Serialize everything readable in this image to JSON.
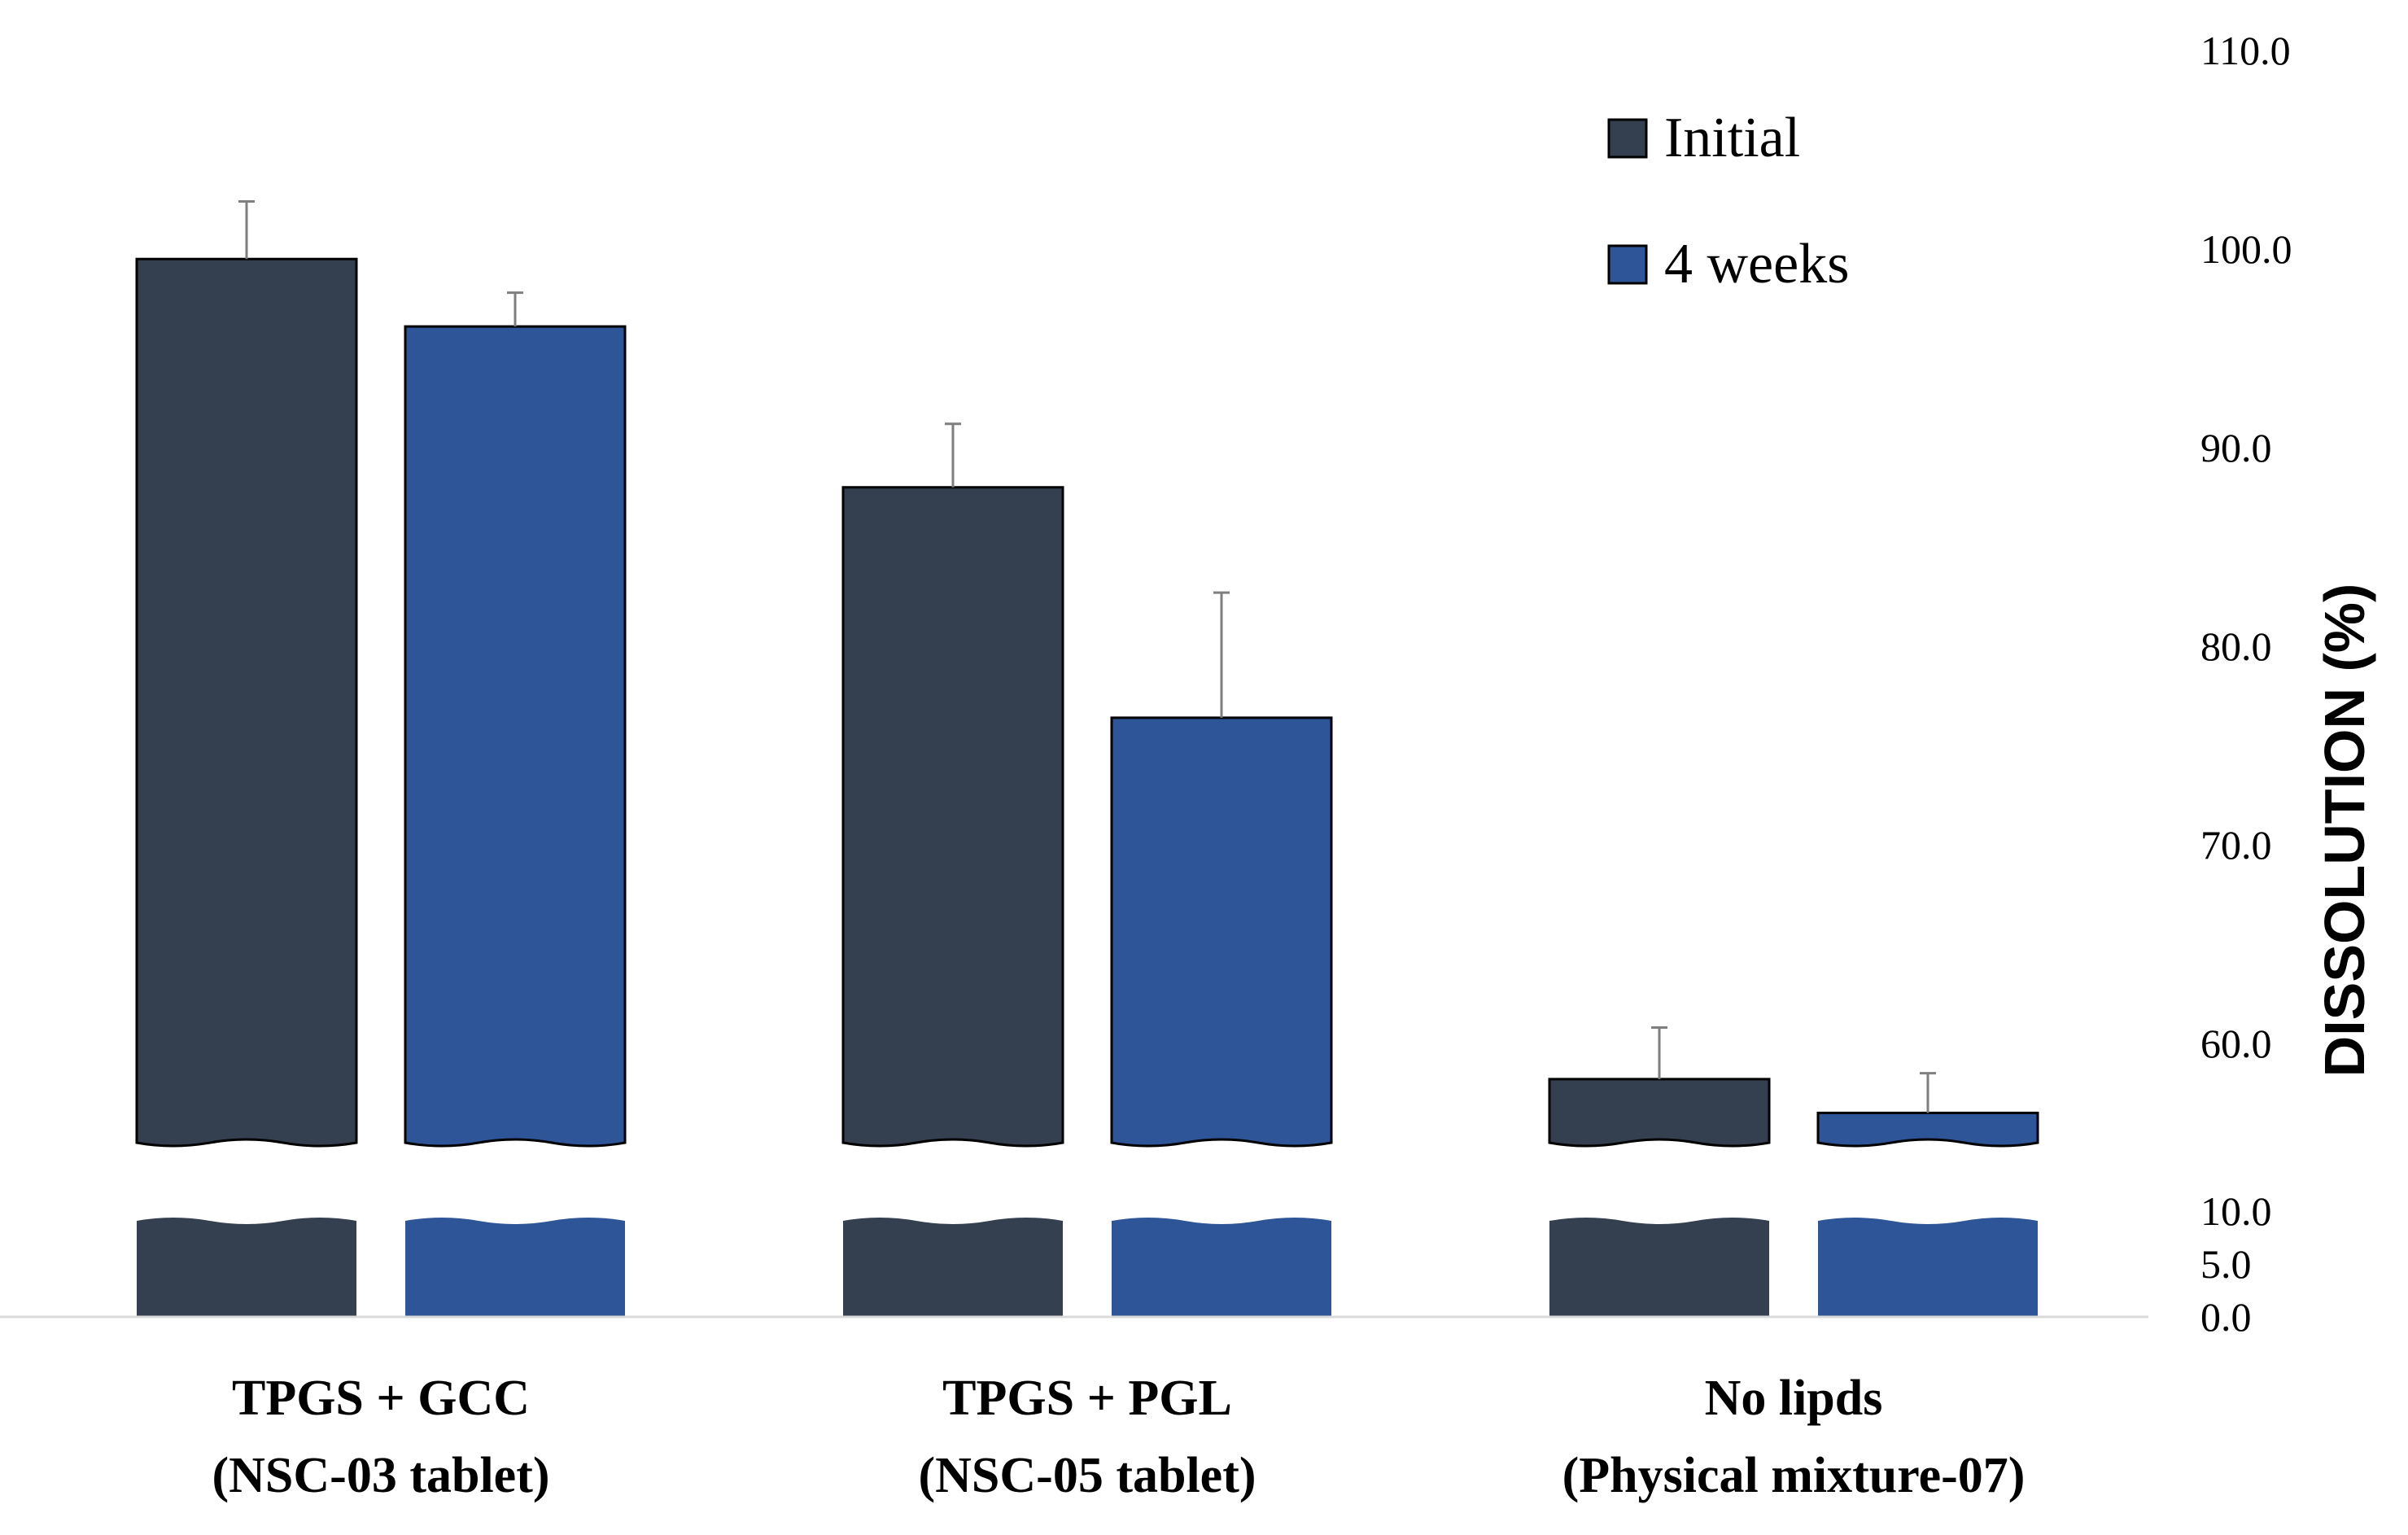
{
  "chart_data": {
    "type": "bar",
    "title": "",
    "xlabel": "",
    "ylabel": "DISSOLUTION (%)",
    "ylim": [
      0,
      110
    ],
    "axis_break": {
      "lower_range": [
        0,
        10
      ],
      "upper_range": [
        55,
        110
      ]
    },
    "yticks": [
      {
        "value": 0,
        "label": "0.0"
      },
      {
        "value": 5,
        "label": "5.0"
      },
      {
        "value": 10,
        "label": "10.0"
      },
      {
        "value": 60,
        "label": "60.0"
      },
      {
        "value": 70,
        "label": "70.0"
      },
      {
        "value": 80,
        "label": "80.0"
      },
      {
        "value": 90,
        "label": "90.0"
      },
      {
        "value": 100,
        "label": "100.0"
      },
      {
        "value": 110,
        "label": "110.0"
      }
    ],
    "categories": [
      {
        "line1": "TPGS + GCC",
        "line2": "(NSC-03 tablet)"
      },
      {
        "line1": "TPGS + PGL",
        "line2": "(NSC-05 tablet)"
      },
      {
        "line1": "No lipds",
        "line2": "(Physical mixture-07)"
      }
    ],
    "series": [
      {
        "name": "Initial",
        "color": "#343f4f",
        "values": [
          99.5,
          88.0,
          58.2
        ],
        "errors": [
          2.9,
          3.2,
          2.6
        ]
      },
      {
        "name": "4 weeks",
        "color": "#2e5597",
        "values": [
          96.1,
          76.4,
          56.5
        ],
        "errors": [
          1.7,
          6.3,
          2.0
        ]
      }
    ],
    "legend_position": "top-right",
    "grid": false
  }
}
